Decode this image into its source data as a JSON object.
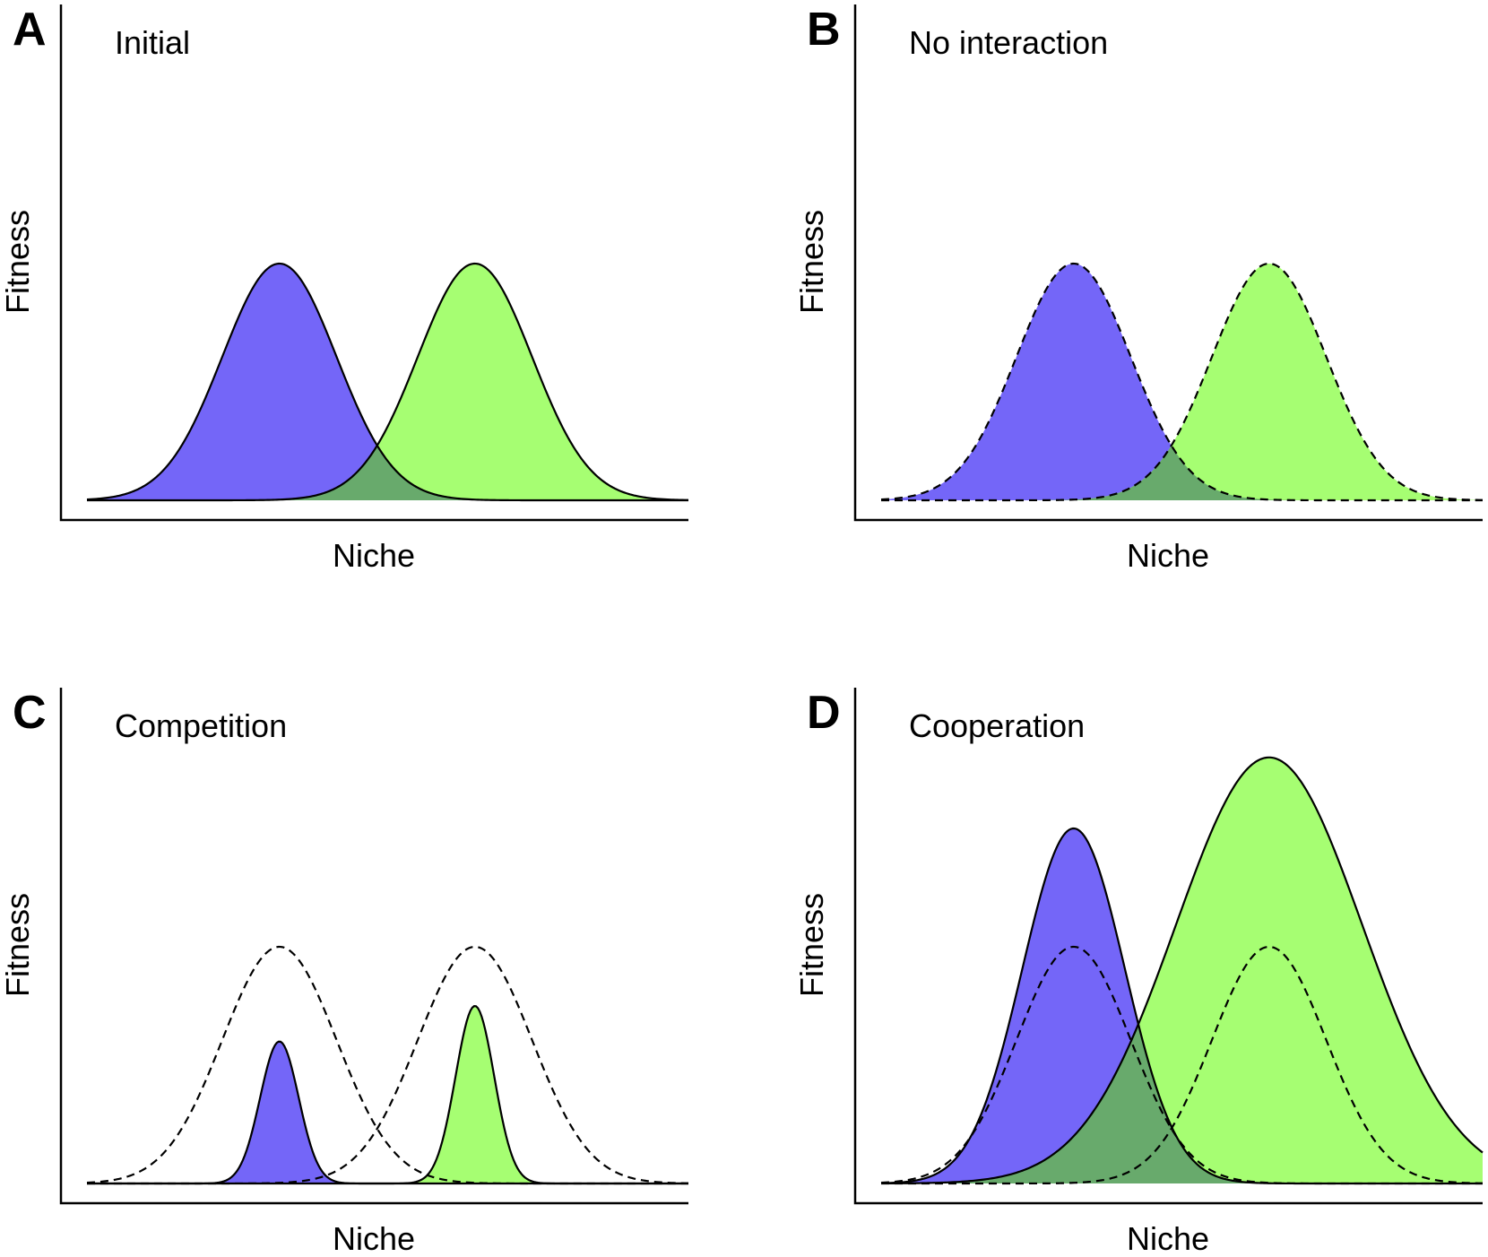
{
  "chart_data": [
    {
      "type": "area",
      "letter": "A",
      "title": "Initial",
      "xlabel": "Niche",
      "ylabel": "Fitness",
      "xlim": [
        0,
        10
      ],
      "ylim": [
        0,
        1.2
      ],
      "grid": false,
      "colors": {
        "blue": "#7466f8",
        "green": "#a6fe72",
        "overlap": "#68aa6c"
      },
      "series": [
        {
          "mean": 3.2,
          "sd": 0.95,
          "peak": 1.0,
          "fill": "blue",
          "stroke": "solid"
        },
        {
          "mean": 6.45,
          "sd": 0.95,
          "peak": 1.0,
          "fill": "green",
          "stroke": "solid"
        }
      ],
      "overlap": {
        "between": [
          0,
          1
        ]
      }
    },
    {
      "type": "area",
      "letter": "B",
      "title": "No interaction",
      "xlabel": "Niche",
      "ylabel": "Fitness",
      "xlim": [
        0,
        10
      ],
      "ylim": [
        0,
        1.2
      ],
      "grid": false,
      "colors": {
        "blue": "#7466f8",
        "green": "#a6fe72",
        "overlap": "#68aa6c"
      },
      "series": [
        {
          "mean": 3.2,
          "sd": 0.95,
          "peak": 1.0,
          "fill": "blue",
          "stroke": "dashed"
        },
        {
          "mean": 6.45,
          "sd": 0.95,
          "peak": 1.0,
          "fill": "green",
          "stroke": "dashed"
        }
      ],
      "overlap": {
        "between": [
          0,
          1
        ]
      }
    },
    {
      "type": "area",
      "letter": "C",
      "title": "Competition",
      "xlabel": "Niche",
      "ylabel": "Fitness",
      "xlim": [
        0,
        10
      ],
      "ylim": [
        0,
        1.2
      ],
      "grid": false,
      "colors": {
        "blue": "#7466f8",
        "green": "#a6fe72",
        "overlap": "#68aa6c"
      },
      "series": [
        {
          "mean": 3.2,
          "sd": 0.95,
          "peak": 1.0,
          "fill": "none",
          "stroke": "dashed"
        },
        {
          "mean": 6.45,
          "sd": 0.95,
          "peak": 1.0,
          "fill": "none",
          "stroke": "dashed"
        },
        {
          "mean": 3.2,
          "sd": 0.32,
          "peak": 0.6,
          "fill": "blue",
          "stroke": "solid"
        },
        {
          "mean": 6.45,
          "sd": 0.32,
          "peak": 0.75,
          "fill": "green",
          "stroke": "solid"
        }
      ]
    },
    {
      "type": "area",
      "letter": "D",
      "title": "Cooperation",
      "xlabel": "Niche",
      "ylabel": "Fitness",
      "xlim": [
        0,
        10
      ],
      "ylim": [
        0,
        1.2
      ],
      "grid": false,
      "colors": {
        "blue": "#7466f8",
        "green": "#a6fe72",
        "overlap": "#68aa6c"
      },
      "series": [
        {
          "mean": 3.2,
          "sd": 0.85,
          "peak": 1.5,
          "fill": "blue",
          "stroke": "solid"
        },
        {
          "mean": 6.45,
          "sd": 1.55,
          "peak": 1.8,
          "fill": "green",
          "stroke": "solid"
        },
        {
          "mean": 3.2,
          "sd": 0.95,
          "peak": 1.0,
          "fill": "none",
          "stroke": "dashed"
        },
        {
          "mean": 6.45,
          "sd": 0.95,
          "peak": 1.0,
          "fill": "none",
          "stroke": "dashed"
        }
      ],
      "overlap": {
        "between": [
          0,
          1
        ]
      }
    }
  ]
}
